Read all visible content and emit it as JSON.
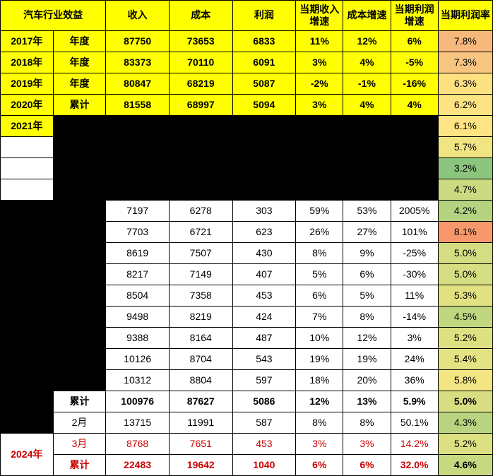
{
  "header": {
    "c0": "汽车行业效益",
    "c1": "收入",
    "c2": "成本",
    "c3": "利润",
    "c4": "当期收入增速",
    "c5": "成本增速",
    "c6": "当期利润增速",
    "c7": "当期利润率"
  },
  "rows": [
    {
      "year": "2017年",
      "period": "年度",
      "income": "87750",
      "cost": "73653",
      "profit": "6833",
      "igrow": "11%",
      "cgrow": "12%",
      "pgrow": "6%",
      "rate": "7.8%",
      "rateColor": "#f7b87c",
      "yellow": true,
      "red": false,
      "bold": false,
      "black": false
    },
    {
      "year": "2018年",
      "period": "年度",
      "income": "83373",
      "cost": "70110",
      "profit": "6091",
      "igrow": "3%",
      "cgrow": "4%",
      "pgrow": "-5%",
      "rate": "7.3%",
      "rateColor": "#f7c580",
      "yellow": true,
      "red": false,
      "bold": false,
      "black": false
    },
    {
      "year": "2019年",
      "period": "年度",
      "income": "80847",
      "cost": "68219",
      "profit": "5087",
      "igrow": "-2%",
      "cgrow": "-1%",
      "pgrow": "-16%",
      "rate": "6.3%",
      "rateColor": "#fde181",
      "yellow": true,
      "red": false,
      "bold": false,
      "black": false
    },
    {
      "year": "2020年",
      "period": "累计",
      "income": "81558",
      "cost": "68997",
      "profit": "5094",
      "igrow": "3%",
      "cgrow": "4%",
      "pgrow": "4%",
      "rate": "6.2%",
      "rateColor": "#fee382",
      "yellow": true,
      "red": false,
      "bold": false,
      "black": false
    },
    {
      "year": "2021年",
      "period": "",
      "income": "",
      "cost": "",
      "profit": "",
      "igrow": "",
      "cgrow": "",
      "pgrow": "",
      "rate": "6.1%",
      "rateColor": "#fee482",
      "yellow": true,
      "red": false,
      "bold": false,
      "black": true,
      "yearOnly": true
    },
    {
      "year": "",
      "period": "",
      "income": "",
      "cost": "",
      "profit": "",
      "igrow": "",
      "cgrow": "",
      "pgrow": "",
      "rate": "5.7%",
      "rateColor": "#f1e483",
      "yellow": false,
      "red": false,
      "bold": false,
      "black": true
    },
    {
      "year": "",
      "period": "",
      "income": "",
      "cost": "",
      "profit": "",
      "igrow": "",
      "cgrow": "",
      "pgrow": "",
      "rate": "3.2%",
      "rateColor": "#8cc57d",
      "yellow": false,
      "red": false,
      "bold": false,
      "black": true
    },
    {
      "year": "",
      "period": "",
      "income": "",
      "cost": "",
      "profit": "",
      "igrow": "",
      "cgrow": "",
      "pgrow": "",
      "rate": "4.7%",
      "rateColor": "#cbda81",
      "yellow": false,
      "red": false,
      "bold": false,
      "black": true
    },
    {
      "year": "",
      "period": "",
      "income": "7197",
      "cost": "6278",
      "profit": "303",
      "igrow": "59%",
      "cgrow": "53%",
      "pgrow": "2005%",
      "rate": "4.2%",
      "rateColor": "#b4d380",
      "yellow": false,
      "red": false,
      "bold": false,
      "black": false,
      "hideYearPeriod": true
    },
    {
      "year": "",
      "period": "",
      "income": "7703",
      "cost": "6721",
      "profit": "623",
      "igrow": "26%",
      "cgrow": "27%",
      "pgrow": "101%",
      "rate": "8.1%",
      "rateColor": "#f7986c",
      "yellow": false,
      "red": false,
      "bold": false,
      "black": false,
      "hideYearPeriod": true
    },
    {
      "year": "",
      "period": "",
      "income": "8619",
      "cost": "7507",
      "profit": "430",
      "igrow": "8%",
      "cgrow": "9%",
      "pgrow": "-25%",
      "rate": "5.0%",
      "rateColor": "#d5dd82",
      "yellow": false,
      "red": false,
      "bold": false,
      "black": false,
      "hideYearPeriod": true
    },
    {
      "year": "",
      "period": "",
      "income": "8217",
      "cost": "7149",
      "profit": "407",
      "igrow": "5%",
      "cgrow": "6%",
      "pgrow": "-30%",
      "rate": "5.0%",
      "rateColor": "#d6de82",
      "yellow": false,
      "red": false,
      "bold": false,
      "black": false,
      "hideYearPeriod": true
    },
    {
      "year": "",
      "period": "",
      "income": "8504",
      "cost": "7358",
      "profit": "453",
      "igrow": "6%",
      "cgrow": "5%",
      "pgrow": "11%",
      "rate": "5.3%",
      "rateColor": "#e1e182",
      "yellow": false,
      "red": false,
      "bold": false,
      "black": false,
      "hideYearPeriod": true
    },
    {
      "year": "",
      "period": "",
      "income": "9498",
      "cost": "8219",
      "profit": "424",
      "igrow": "7%",
      "cgrow": "8%",
      "pgrow": "-14%",
      "rate": "4.5%",
      "rateColor": "#c0d780",
      "yellow": false,
      "red": false,
      "bold": false,
      "black": false,
      "hideYearPeriod": true
    },
    {
      "year": "",
      "period": "",
      "income": "9388",
      "cost": "8164",
      "profit": "487",
      "igrow": "10%",
      "cgrow": "12%",
      "pgrow": "3%",
      "rate": "5.2%",
      "rateColor": "#dee182",
      "yellow": false,
      "red": false,
      "bold": false,
      "black": false,
      "hideYearPeriod": true
    },
    {
      "year": "",
      "period": "",
      "income": "10126",
      "cost": "8704",
      "profit": "543",
      "igrow": "19%",
      "cgrow": "19%",
      "pgrow": "24%",
      "rate": "5.4%",
      "rateColor": "#e4e283",
      "yellow": false,
      "red": false,
      "bold": false,
      "black": false,
      "hideYearPeriod": true
    },
    {
      "year": "",
      "period": "",
      "income": "10312",
      "cost": "8804",
      "profit": "597",
      "igrow": "18%",
      "cgrow": "20%",
      "pgrow": "36%",
      "rate": "5.8%",
      "rateColor": "#f3e583",
      "yellow": false,
      "red": false,
      "bold": false,
      "black": false,
      "hideYearPeriod": true
    },
    {
      "year": "",
      "period": "累计",
      "income": "100976",
      "cost": "87627",
      "profit": "5086",
      "igrow": "12%",
      "cgrow": "13%",
      "pgrow": "5.9%",
      "rate": "5.0%",
      "rateColor": "#d7de82",
      "yellow": false,
      "red": false,
      "bold": true,
      "black": false,
      "hideYear": true
    },
    {
      "year": "",
      "period": "2月",
      "income": "13715",
      "cost": "11991",
      "profit": "587",
      "igrow": "8%",
      "cgrow": "8%",
      "pgrow": "50.1%",
      "rate": "4.3%",
      "rateColor": "#b9d480",
      "yellow": false,
      "red": false,
      "bold": false,
      "black": false,
      "hideYear": true
    },
    {
      "year": "2024年",
      "period": "3月",
      "income": "8768",
      "cost": "7651",
      "profit": "453",
      "igrow": "3%",
      "cgrow": "3%",
      "pgrow": "14.2%",
      "rate": "5.2%",
      "rateColor": "#dce082",
      "yellow": false,
      "red": true,
      "bold": false,
      "black": false,
      "yearRowSpan": 2
    },
    {
      "year": "",
      "period": "累计",
      "income": "22483",
      "cost": "19642",
      "profit": "1040",
      "igrow": "6%",
      "cgrow": "6%",
      "pgrow": "32.0%",
      "rate": "4.6%",
      "rateColor": "#c6d981",
      "yellow": false,
      "red": true,
      "bold": true,
      "black": false,
      "skipYear": true
    }
  ]
}
